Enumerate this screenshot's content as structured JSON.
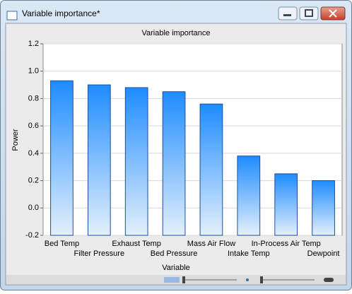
{
  "window": {
    "title": "Variable importance*"
  },
  "chart_data": {
    "type": "bar",
    "title": "Variable importance",
    "x_label": "Variable",
    "y_label": "Power",
    "categories": [
      "Bed Temp",
      "Filter Pressure",
      "Exhaust Temp",
      "Bed Pressure",
      "Mass Air Flow",
      "Intake Temp",
      "In-Process Air Temp",
      "Dewpoint"
    ],
    "values": [
      0.93,
      0.9,
      0.88,
      0.85,
      0.76,
      0.38,
      0.25,
      0.2
    ],
    "color": "#1e8cff",
    "ylim": [
      -0.2,
      1.2
    ],
    "yticks": [
      -0.2,
      {
        "value": 0,
        "label": "0.0"
      },
      0.2,
      0.4,
      0.6,
      0.8,
      {
        "value": 1,
        "label": "1.0"
      },
      1.2
    ],
    "grid": true
  }
}
